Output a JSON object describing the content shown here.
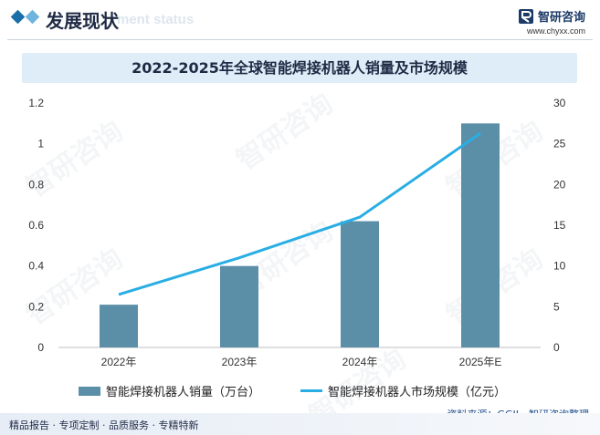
{
  "header": {
    "title": "发展现状",
    "subtitle_bg": "ment status",
    "brand_name": "智研咨询",
    "brand_url": "www.chyxx.com"
  },
  "legend": {
    "bar_label": "智能焊接机器人销量（万台）",
    "line_label": "智能焊接机器人市场规模（亿元）"
  },
  "source": "资料来源：GGII、智研咨询整理",
  "footer": "精品报告 · 专项定制 · 品质服务 · 专精特新",
  "watermark": "智研咨询",
  "colors": {
    "bar": "#5b8fa8",
    "line": "#29aee4",
    "accent": "#1b6fa8"
  },
  "chart_data": {
    "type": "bar",
    "title": "2022-2025年全球智能焊接机器人销量及市场规模",
    "categories": [
      "2022年",
      "2023年",
      "2024年",
      "2025年E"
    ],
    "series": [
      {
        "name": "智能焊接机器人销量（万台）",
        "type": "bar",
        "axis": "left",
        "values": [
          0.21,
          0.4,
          0.62,
          1.1
        ]
      },
      {
        "name": "智能焊接机器人市场规模（亿元）",
        "type": "line",
        "axis": "right",
        "values": [
          6.5,
          11.0,
          16.0,
          26.3
        ]
      }
    ],
    "y_left": {
      "ticks": [
        "0",
        "0.2",
        "0.4",
        "0.6",
        "0.8",
        "1",
        "1.2"
      ],
      "range": [
        0,
        1.2
      ]
    },
    "y_right": {
      "ticks": [
        "0",
        "5",
        "10",
        "15",
        "20",
        "25",
        "30"
      ],
      "range": [
        0,
        30
      ]
    },
    "grid": false,
    "legend_position": "bottom"
  }
}
